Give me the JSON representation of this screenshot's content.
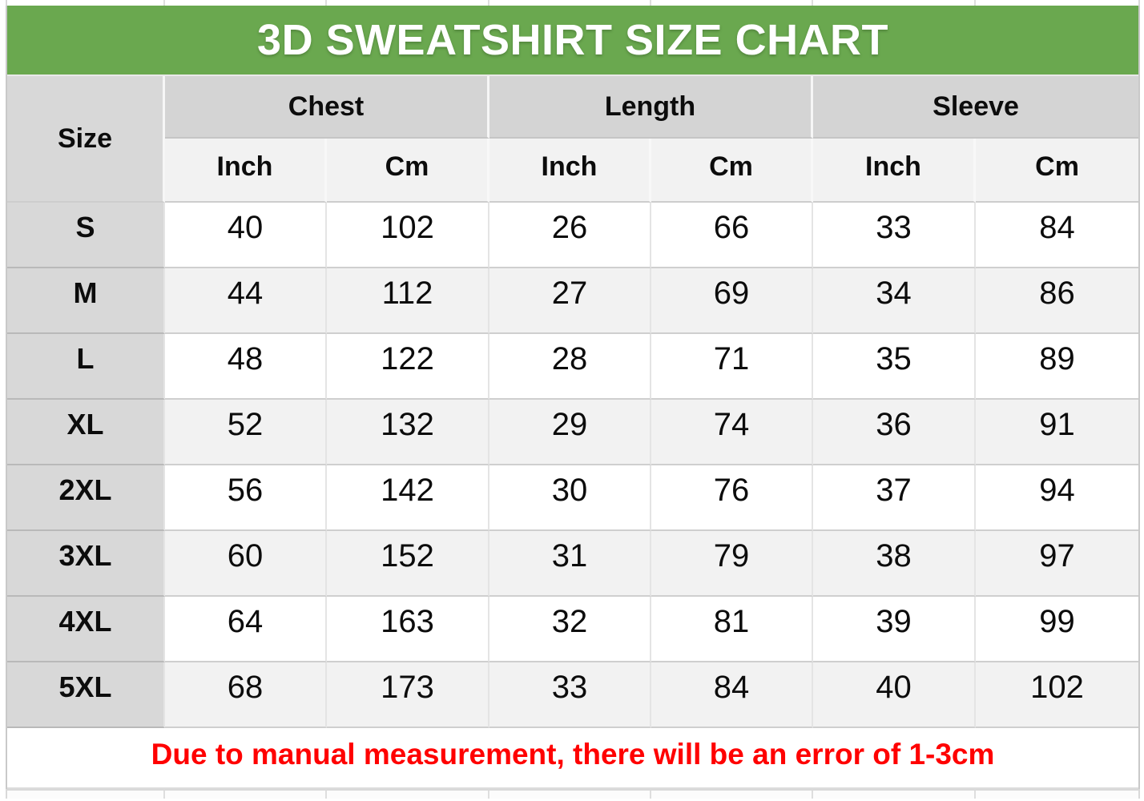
{
  "colors": {
    "title_bar_green": "#6aa84f",
    "note_red": "#ff0000",
    "header_gray": "#d8d8d8",
    "alt_row_gray": "#f2f2f2"
  },
  "chart_data": {
    "type": "table",
    "title": "3D SWEATSHIRT SIZE CHART",
    "corner_header": "Size",
    "groups": [
      {
        "label": "Chest",
        "units": [
          "Inch",
          "Cm"
        ]
      },
      {
        "label": "Length",
        "units": [
          "Inch",
          "Cm"
        ]
      },
      {
        "label": "Sleeve",
        "units": [
          "Inch",
          "Cm"
        ]
      }
    ],
    "rows": [
      {
        "size": "S",
        "chest_inch": 40,
        "chest_cm": 102,
        "length_inch": 26,
        "length_cm": 66,
        "sleeve_inch": 33,
        "sleeve_cm": 84
      },
      {
        "size": "M",
        "chest_inch": 44,
        "chest_cm": 112,
        "length_inch": 27,
        "length_cm": 69,
        "sleeve_inch": 34,
        "sleeve_cm": 86
      },
      {
        "size": "L",
        "chest_inch": 48,
        "chest_cm": 122,
        "length_inch": 28,
        "length_cm": 71,
        "sleeve_inch": 35,
        "sleeve_cm": 89
      },
      {
        "size": "XL",
        "chest_inch": 52,
        "chest_cm": 132,
        "length_inch": 29,
        "length_cm": 74,
        "sleeve_inch": 36,
        "sleeve_cm": 91
      },
      {
        "size": "2XL",
        "chest_inch": 56,
        "chest_cm": 142,
        "length_inch": 30,
        "length_cm": 76,
        "sleeve_inch": 37,
        "sleeve_cm": 94
      },
      {
        "size": "3XL",
        "chest_inch": 60,
        "chest_cm": 152,
        "length_inch": 31,
        "length_cm": 79,
        "sleeve_inch": 38,
        "sleeve_cm": 97
      },
      {
        "size": "4XL",
        "chest_inch": 64,
        "chest_cm": 163,
        "length_inch": 32,
        "length_cm": 81,
        "sleeve_inch": 39,
        "sleeve_cm": 99
      },
      {
        "size": "5XL",
        "chest_inch": 68,
        "chest_cm": 173,
        "length_inch": 33,
        "length_cm": 84,
        "sleeve_inch": 40,
        "sleeve_cm": 102
      }
    ],
    "note": "Due to manual measurement, there will be an error of 1-3cm"
  }
}
